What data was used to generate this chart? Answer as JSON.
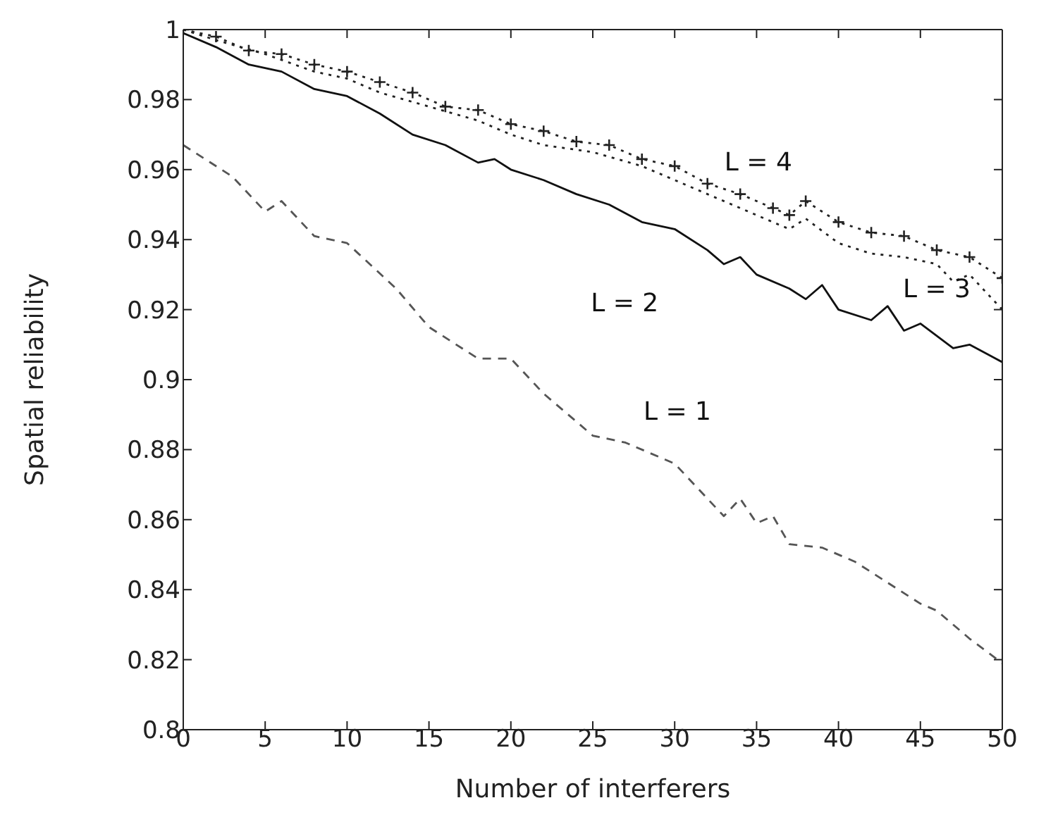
{
  "chart_data": {
    "type": "line",
    "xlabel": "Number of interferers",
    "ylabel": "Spatial reliability",
    "xlim": [
      0,
      50
    ],
    "xticks": [
      0,
      5,
      10,
      15,
      20,
      25,
      30,
      35,
      40,
      45,
      50
    ],
    "ylim": [
      0.8,
      1
    ],
    "yticks": [
      0.8,
      0.82,
      0.84,
      0.86,
      0.88,
      0.9,
      0.92,
      0.94,
      0.96,
      0.98,
      1
    ],
    "grid": false,
    "legend": false,
    "marker": "none",
    "series": [
      {
        "name": "L = 1",
        "color": "#555555",
        "line_style": "dashed",
        "x": [
          0,
          3,
          5,
          6,
          8,
          10,
          13,
          15,
          18,
          20,
          22,
          25,
          27,
          30,
          33,
          34,
          35,
          36,
          37,
          39,
          41,
          43,
          45,
          46,
          48,
          50
        ],
        "values": [
          0.967,
          0.958,
          0.948,
          0.951,
          0.941,
          0.939,
          0.926,
          0.915,
          0.906,
          0.906,
          0.896,
          0.884,
          0.882,
          0.876,
          0.861,
          0.866,
          0.859,
          0.861,
          0.853,
          0.852,
          0.848,
          0.842,
          0.836,
          0.834,
          0.826,
          0.819
        ]
      },
      {
        "name": "L = 2",
        "color": "#111111",
        "line_style": "solid",
        "x": [
          0,
          2,
          4,
          6,
          8,
          10,
          12,
          14,
          16,
          18,
          19,
          20,
          22,
          24,
          26,
          28,
          30,
          32,
          33,
          34,
          35,
          37,
          38,
          39,
          40,
          42,
          43,
          44,
          45,
          47,
          48,
          50
        ],
        "values": [
          0.999,
          0.995,
          0.99,
          0.988,
          0.983,
          0.981,
          0.976,
          0.97,
          0.967,
          0.962,
          0.963,
          0.96,
          0.957,
          0.953,
          0.95,
          0.945,
          0.943,
          0.937,
          0.933,
          0.935,
          0.93,
          0.926,
          0.923,
          0.927,
          0.92,
          0.917,
          0.921,
          0.914,
          0.916,
          0.909,
          0.91,
          0.905
        ]
      },
      {
        "name": "L = 3",
        "color": "#222222",
        "line_style": "dotted",
        "x": [
          0,
          2,
          5,
          8,
          10,
          12,
          15,
          18,
          20,
          22,
          25,
          28,
          30,
          32,
          35,
          37,
          38,
          40,
          42,
          44,
          46,
          47,
          48,
          50
        ],
        "values": [
          1,
          0.997,
          0.993,
          0.988,
          0.986,
          0.982,
          0.978,
          0.974,
          0.97,
          0.967,
          0.965,
          0.961,
          0.957,
          0.953,
          0.947,
          0.943,
          0.946,
          0.939,
          0.936,
          0.935,
          0.933,
          0.928,
          0.93,
          0.92
        ]
      },
      {
        "name": "L = 4",
        "color": "#222222",
        "line_style": "dotted",
        "marker": "cross",
        "x": [
          0,
          2,
          4,
          6,
          8,
          10,
          12,
          14,
          16,
          18,
          20,
          22,
          24,
          26,
          28,
          30,
          32,
          34,
          36,
          37,
          38,
          40,
          42,
          44,
          46,
          48,
          50
        ],
        "values": [
          1,
          0.998,
          0.994,
          0.993,
          0.99,
          0.988,
          0.985,
          0.982,
          0.978,
          0.977,
          0.973,
          0.971,
          0.968,
          0.967,
          0.963,
          0.961,
          0.956,
          0.953,
          0.949,
          0.947,
          0.951,
          0.945,
          0.942,
          0.941,
          0.937,
          0.935,
          0.929
        ]
      }
    ]
  }
}
